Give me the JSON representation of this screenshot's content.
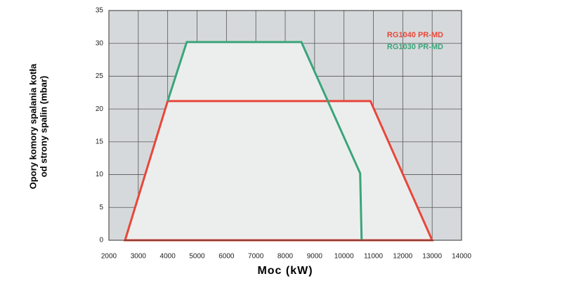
{
  "chart_data": {
    "type": "line",
    "y_label": [
      "Opory komory spalania kotła",
      "od strony spalin (mbar)"
    ],
    "x_label": "Moc (kW)",
    "xlim": [
      2000,
      14000
    ],
    "xticks": [
      2000,
      3000,
      4000,
      5000,
      6000,
      7000,
      8000,
      9000,
      10000,
      11000,
      12000,
      13000,
      14000
    ],
    "ylim": [
      0,
      35
    ],
    "yticks": [
      0,
      5,
      10,
      15,
      20,
      25,
      30,
      35
    ],
    "grid": true,
    "legend": "upper right",
    "series": [
      {
        "name": "RG1040 PR-MD",
        "color": "#e8473a",
        "x": [
          2550,
          4000,
          10900,
          13000
        ],
        "values": [
          0,
          21.2,
          21.2,
          0
        ]
      },
      {
        "name": "RG1030 PR-MD",
        "color": "#3aa57a",
        "x": [
          4000,
          4650,
          8550,
          10550,
          10600
        ],
        "values": [
          21.2,
          30.2,
          30.2,
          10.2,
          0
        ]
      }
    ]
  }
}
